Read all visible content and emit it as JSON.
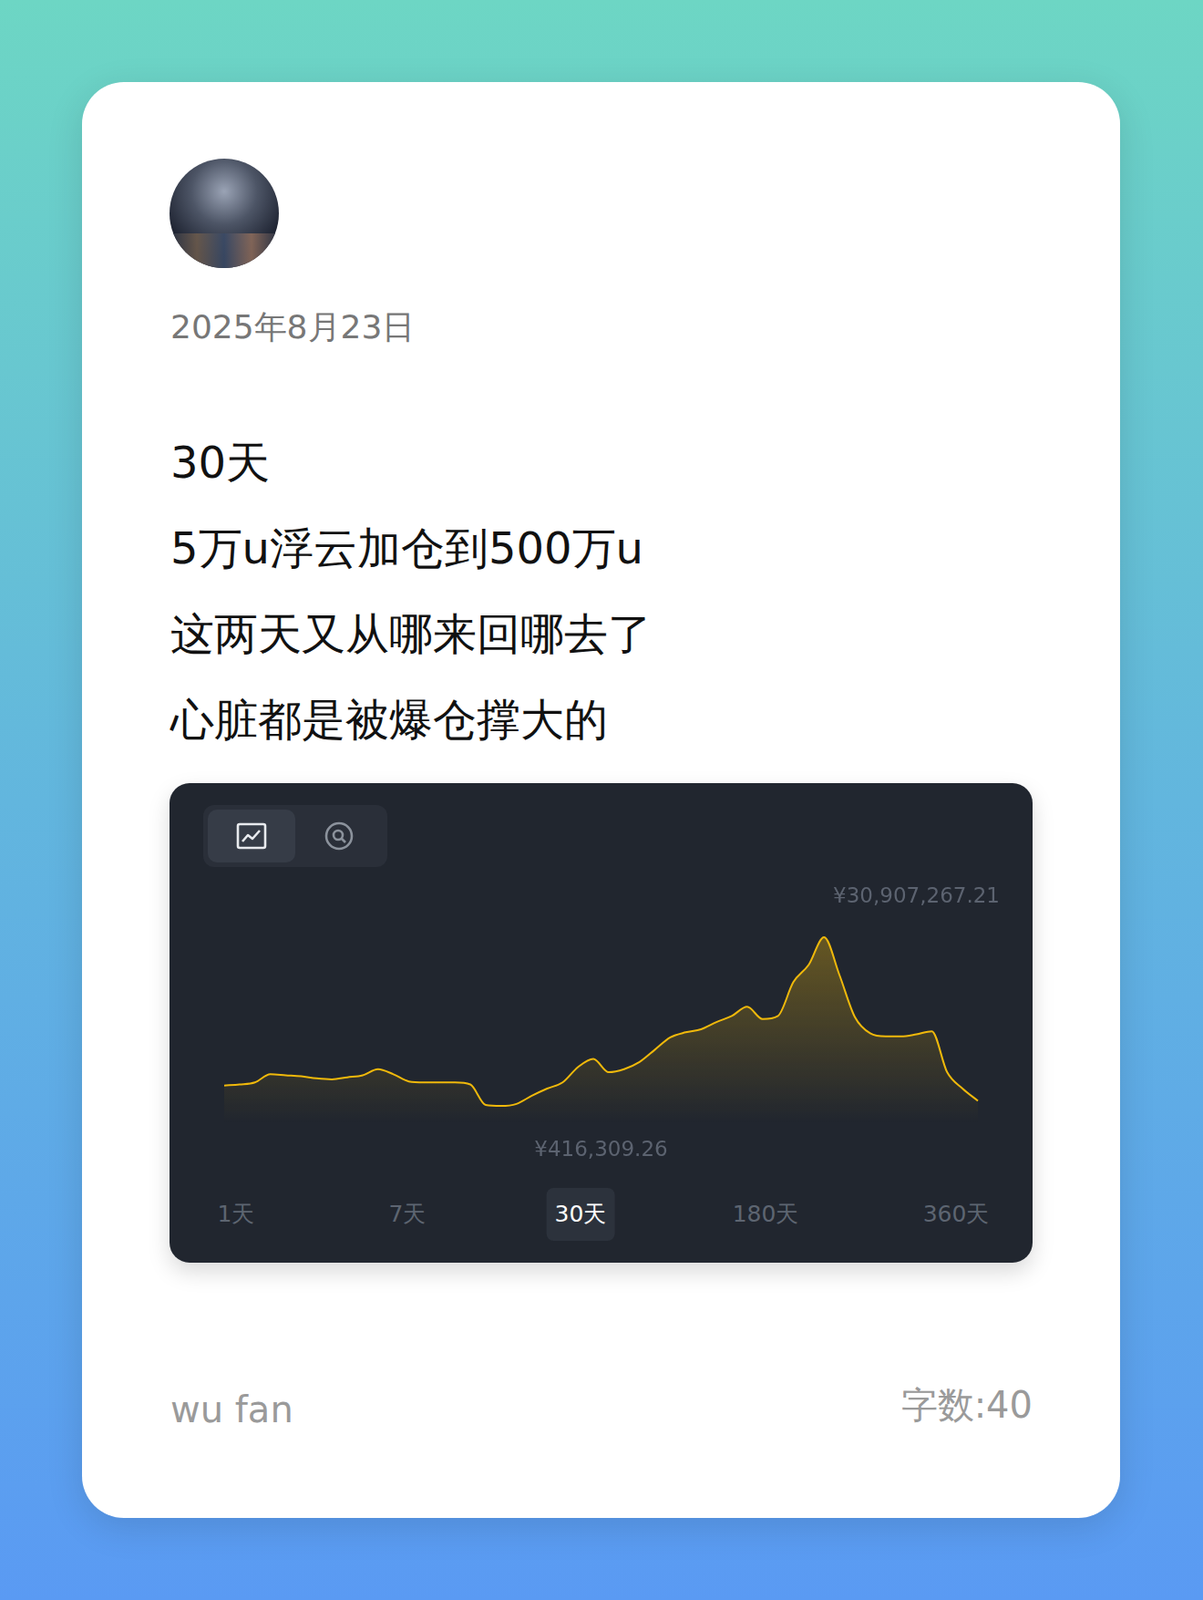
{
  "post": {
    "date": "2025年8月23日",
    "lines": [
      "30天",
      "5万u浮云加仓到500万u",
      "这两天又从哪来回哪去了",
      "心脏都是被爆仓撑大的"
    ],
    "author": "wu fan",
    "word_count": "字数:40"
  },
  "chart_data": {
    "type": "line",
    "categories": [
      null,
      null,
      null,
      null,
      null,
      null,
      null,
      null,
      null,
      null,
      null,
      null,
      null,
      null,
      null,
      null,
      null,
      null,
      null,
      null,
      null,
      null,
      null,
      null,
      null,
      null,
      null,
      null,
      null,
      null,
      null,
      null,
      null,
      null,
      null,
      null,
      null,
      null,
      null,
      null,
      null,
      null,
      null,
      null,
      null,
      null,
      null,
      null,
      null,
      null
    ],
    "values": [
      4112309,
      4297109,
      4666709,
      6145109,
      5960309,
      5775509,
      5405909,
      5221109,
      5590709,
      5960309,
      7069109,
      6145109,
      4851509,
      4666709,
      4666709,
      4666709,
      4297109,
      601109,
      416309.26,
      785909,
      2264309,
      3557909,
      4666709,
      7438709,
      8917109,
      6514709,
      7069109,
      8362709,
      10580309,
      12797909,
      13721909,
      14276309,
      15569909,
      16678709,
      18341909,
      16124309,
      16678709,
      22776709,
      25918309,
      30907267.21,
      24070709,
      16493909,
      13537109,
      12982709,
      12982709,
      13352309,
      13906709,
      6514709,
      3557909,
      1340309
    ],
    "color": "#f0b90b",
    "ylim": [
      -2700000,
      34200000
    ],
    "grid": false,
    "tick_labels": false,
    "annotations": [
      "¥30,907,267.21",
      "¥416,309.26"
    ],
    "tabs": [
      "1天",
      "7天",
      "30天",
      "180天",
      "360天"
    ],
    "selected_tab": "30天"
  }
}
